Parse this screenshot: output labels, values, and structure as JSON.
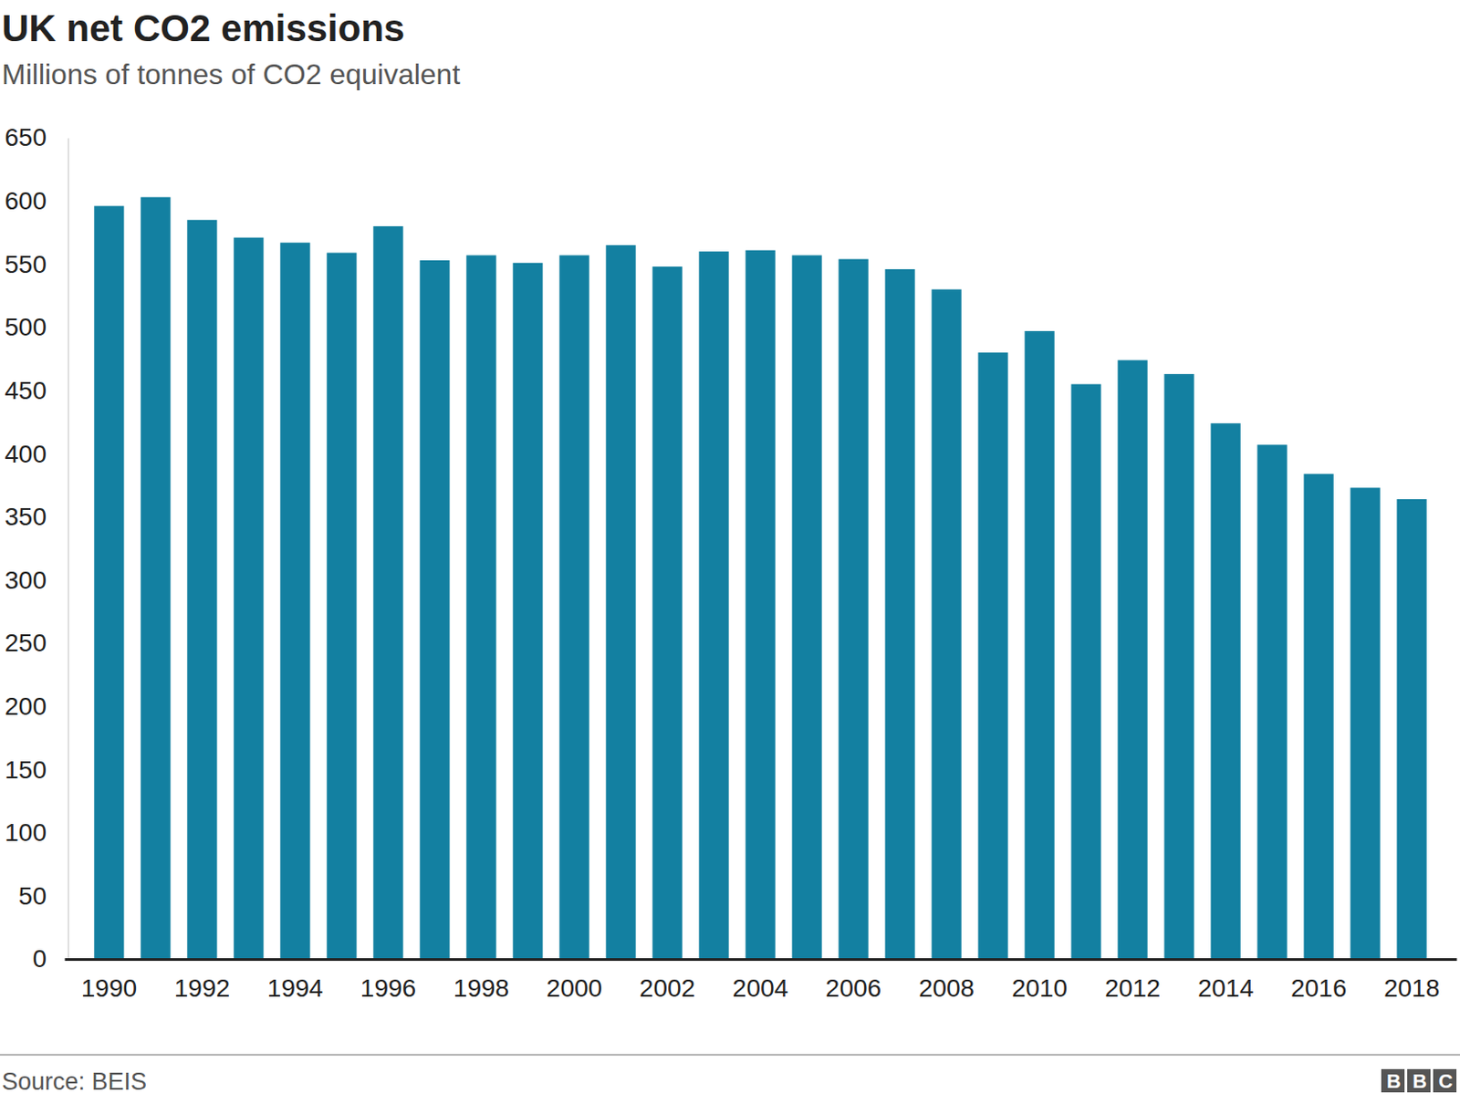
{
  "chart_data": {
    "type": "bar",
    "title": "UK net CO2 emissions",
    "subtitle": "Millions of tonnes of CO2 equivalent",
    "source": "Source: BEIS",
    "logo": "BBC",
    "categories": [
      "1990",
      null,
      "1992",
      null,
      "1994",
      null,
      "1996",
      null,
      "1998",
      null,
      "2000",
      null,
      "2002",
      null,
      "2004",
      null,
      "2006",
      null,
      "2008",
      null,
      "2010",
      null,
      "2012",
      null,
      "2014",
      null,
      "2016",
      null,
      "2018"
    ],
    "values": [
      596,
      603,
      585,
      571,
      567,
      559,
      580,
      553,
      557,
      551,
      557,
      565,
      548,
      560,
      561,
      557,
      554,
      546,
      530,
      480,
      497,
      455,
      474,
      463,
      424,
      407,
      384,
      373,
      364
    ],
    "color": "#1380a1",
    "ylim": [
      0,
      650
    ],
    "yticks": [
      0,
      50,
      100,
      150,
      200,
      250,
      300,
      350,
      400,
      450,
      500,
      550,
      600,
      650
    ],
    "grid": false
  }
}
